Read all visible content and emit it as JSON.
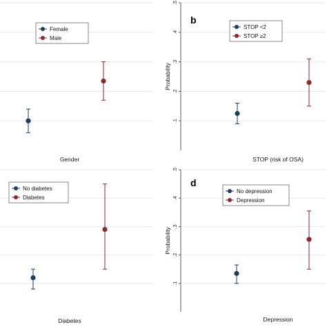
{
  "colors": {
    "series1": "#1f3d5c",
    "series2": "#8c2a30",
    "grid": "#e3e9ef",
    "background": "#ffffff",
    "error_bar": "#1f3d5c"
  },
  "chart_data": [
    {
      "type": "scatter",
      "panel_letter": "",
      "ylabel": "",
      "xlabel": "Gender",
      "ylim": [
        0.0,
        0.5
      ],
      "yticks": [],
      "show_y_axis": false,
      "legend": {
        "position": "top-left",
        "entries": [
          "Female",
          "Male"
        ]
      },
      "series": [
        {
          "name": "Female",
          "estimate": 0.1,
          "ci": [
            0.06,
            0.14
          ]
        },
        {
          "name": "Male",
          "estimate": 0.235,
          "ci": [
            0.17,
            0.3
          ]
        }
      ]
    },
    {
      "type": "scatter",
      "panel_letter": "b",
      "ylabel": "Probability",
      "xlabel": "STOP (risk of OSA)",
      "ylim": [
        0.0,
        0.5
      ],
      "yticks": [
        ".1",
        ".2",
        ".3",
        ".4",
        ".5"
      ],
      "show_y_axis": true,
      "legend": {
        "position": "top-center",
        "entries": [
          "STOP <2",
          "STOP ≥2"
        ]
      },
      "series": [
        {
          "name": "STOP <2",
          "estimate": 0.125,
          "ci": [
            0.09,
            0.16
          ]
        },
        {
          "name": "STOP ≥2",
          "estimate": 0.23,
          "ci": [
            0.15,
            0.31
          ]
        }
      ]
    },
    {
      "type": "scatter",
      "panel_letter": "",
      "ylabel": "",
      "xlabel": "Diabetes",
      "ylim": [
        0.0,
        0.5
      ],
      "yticks": [],
      "show_y_axis": false,
      "legend": {
        "position": "top-left",
        "entries": [
          "No diabetes",
          "Diabetes"
        ]
      },
      "series": [
        {
          "name": "No diabetes",
          "estimate": 0.12,
          "ci": [
            0.08,
            0.15
          ]
        },
        {
          "name": "Diabetes",
          "estimate": 0.29,
          "ci": [
            0.15,
            0.45
          ]
        }
      ]
    },
    {
      "type": "scatter",
      "panel_letter": "d",
      "ylabel": "Probability",
      "xlabel": "Depression",
      "ylim": [
        0.0,
        0.5
      ],
      "yticks": [
        ".1",
        ".2",
        ".3",
        ".4",
        ".5"
      ],
      "show_y_axis": true,
      "legend": {
        "position": "top-center",
        "entries": [
          "No depression",
          "Depression"
        ]
      },
      "series": [
        {
          "name": "No depression",
          "estimate": 0.135,
          "ci": [
            0.1,
            0.165
          ]
        },
        {
          "name": "Depression",
          "estimate": 0.255,
          "ci": [
            0.15,
            0.355
          ]
        }
      ]
    }
  ]
}
